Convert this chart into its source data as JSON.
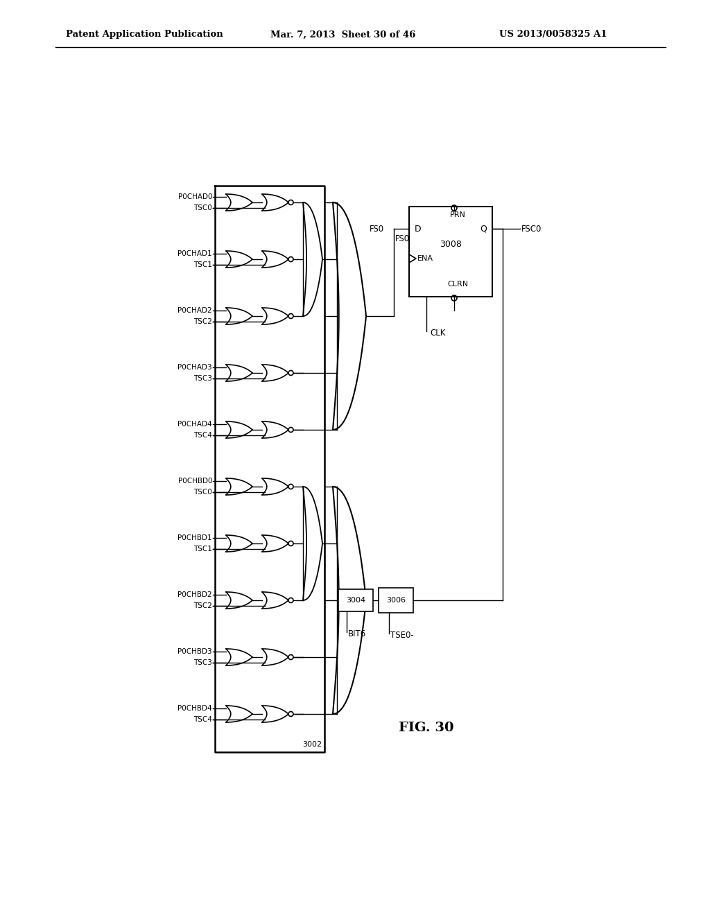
{
  "title": "FIG. 30",
  "header_left": "Patent Application Publication",
  "header_center": "Mar. 7, 2013  Sheet 30 of 46",
  "header_right": "US 2013/0058325 A1",
  "bg_color": "#ffffff",
  "box3002_label": "3002",
  "box3004_label": "3004",
  "box3006_label": "3006",
  "box3008_label": "3008",
  "row_labels": [
    [
      "P0CHAD0",
      "TSC0"
    ],
    [
      "P0CHAD1",
      "TSC1"
    ],
    [
      "P0CHAD2",
      "TSC2"
    ],
    [
      "P0CHAD3",
      "TSC3"
    ],
    [
      "P0CHAD4",
      "TSC4"
    ],
    [
      "P0CHBD0",
      "TSC0"
    ],
    [
      "P0CHBD1",
      "TSC1"
    ],
    [
      "P0CHBD2",
      "TSC2"
    ],
    [
      "P0CHBD3",
      "TSC3"
    ],
    [
      "P0CHBD4",
      "TSC4"
    ]
  ]
}
